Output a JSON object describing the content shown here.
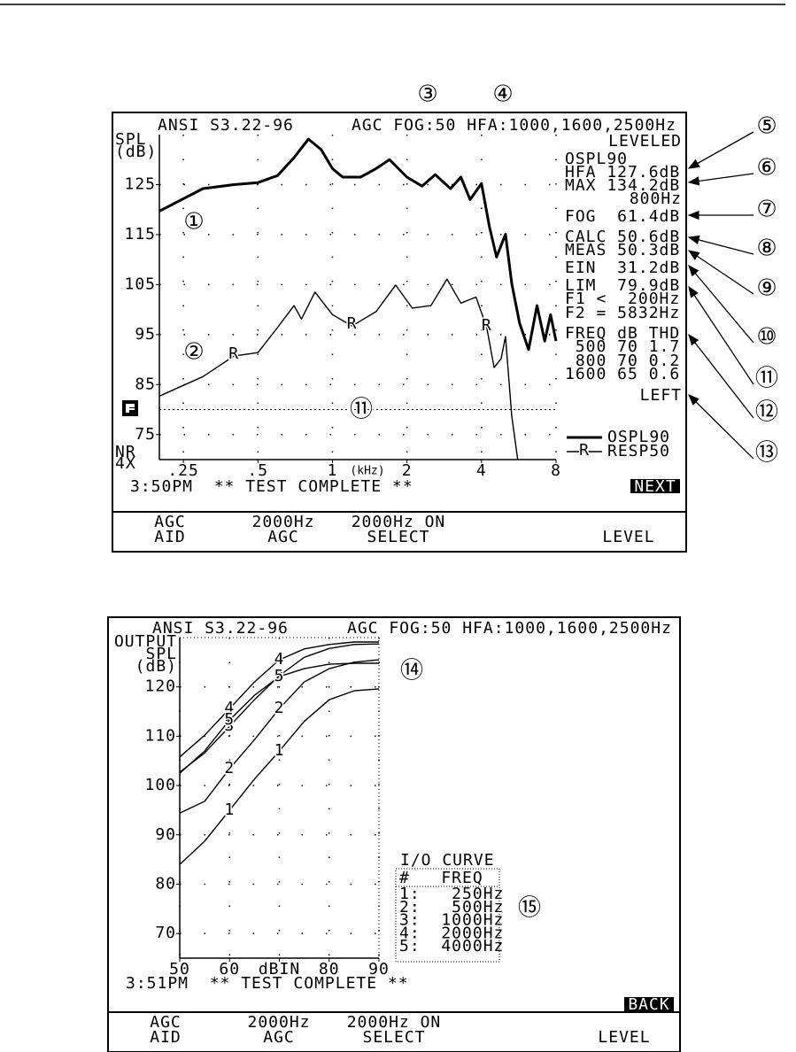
{
  "callouts": [
    "①",
    "②",
    "③",
    "④",
    "⑤",
    "⑥",
    "⑦",
    "⑧",
    "⑨",
    "⑩",
    "⑪",
    "⑪",
    "⑫",
    "⑬",
    "⑭",
    "⑮"
  ],
  "screens": [
    {
      "header_left": "ANSI S3.22-96",
      "header_right": "AGC FOG:50 HFA:1000,1600,2500Hz",
      "status": "3:50PM  ** TEST COMPLETE **",
      "button": "NEXT",
      "corner_labels": [
        "NR",
        "4X"
      ],
      "panel": [
        "LEVELED",
        "OSPL90",
        "HFA 127.6dB",
        "MAX 134.2dB",
        "800Hz",
        "FOG  61.4dB",
        "CALC 50.6dB",
        "MEAS 50.3dB",
        "EIN  31.2dB",
        "LIM  79.9dB",
        "F1 <  200Hz",
        "F2 = 5832Hz",
        "FREQ dB THD",
        " 500 70 1.7",
        " 800 70 0.2",
        "1600 65 0.6",
        "LEFT"
      ],
      "softkeys": [
        [
          "AGC",
          "AID"
        ],
        [
          "2000Hz",
          "AGC"
        ],
        [
          "2000Hz ON",
          "SELECT"
        ],
        [
          "LEVEL"
        ]
      ]
    },
    {
      "header_left": "ANSI S3.22-96",
      "header_right": "AGC FOG:50 HFA:1000,1600,2500Hz",
      "status": "3:51PM  ** TEST COMPLETE **",
      "button": "BACK",
      "legend_title": "I/O CURVE",
      "legend_header": "#   FREQ",
      "softkeys": [
        [
          "AGC",
          "AID"
        ],
        [
          "2000Hz",
          "AGC"
        ],
        [
          "2000Hz ON",
          "SELECT"
        ],
        [
          "LEVEL"
        ]
      ]
    }
  ],
  "chart_data": [
    {
      "type": "line",
      "ylabel": [
        "SPL",
        "(dB)"
      ],
      "xlabel": "(kHz)",
      "log_x": true,
      "grid": true,
      "xlim": [
        0.2,
        8
      ],
      "ylim": [
        70,
        135
      ],
      "xticks": [
        {
          "value": 0.25,
          "label": ".25"
        },
        {
          "value": 0.5,
          "label": ".5"
        },
        1,
        2,
        4,
        8
      ],
      "yticks": [
        75,
        85,
        95,
        105,
        115,
        125
      ],
      "reference_line": 80,
      "series": [
        {
          "name": "OSPL90",
          "color": "#000000",
          "x": [
            0.2,
            0.3,
            0.4,
            0.5,
            0.6,
            0.7,
            0.8,
            0.9,
            1.0,
            1.1,
            1.3,
            1.5,
            1.7,
            2.0,
            2.3,
            2.6,
            3.0,
            3.3,
            3.6,
            4.0,
            4.3,
            4.6,
            5.0,
            5.3,
            5.7,
            6.2,
            6.7,
            7.2,
            7.6,
            8.0
          ],
          "values": [
            119.7,
            124.2,
            125,
            125.4,
            126.8,
            130.4,
            134.1,
            132,
            128.2,
            126.5,
            126.5,
            128.2,
            130,
            126.5,
            124.7,
            127,
            124.2,
            126.5,
            122,
            125.2,
            116.7,
            110.5,
            115.1,
            105.2,
            97.3,
            92,
            100.8,
            93.7,
            99,
            93.7
          ]
        },
        {
          "name": "RESP50",
          "color": "#000000",
          "marker": "R",
          "x": [
            0.2,
            0.3,
            0.4,
            0.5,
            0.6,
            0.7,
            0.75,
            0.85,
            1.0,
            1.2,
            1.5,
            1.8,
            2.1,
            2.5,
            2.9,
            3.3,
            3.8,
            4.2,
            4.5,
            4.8,
            5.0,
            5.3,
            5.6
          ],
          "values": [
            82.7,
            86.6,
            90.7,
            91.4,
            96.4,
            100.8,
            98.1,
            103.5,
            99,
            96.7,
            99.6,
            104.9,
            100.3,
            100.8,
            106.1,
            101.3,
            102.5,
            96.4,
            88.4,
            90.2,
            94.6,
            78.7,
            70
          ]
        }
      ]
    },
    {
      "type": "line",
      "ylabel": [
        "OUTPUT",
        "SPL",
        "(dB)"
      ],
      "grid": true,
      "xlim": [
        50,
        90
      ],
      "ylim": [
        65,
        130
      ],
      "xticks": [
        50,
        60,
        {
          "value": 70,
          "label": "dBIN"
        },
        80,
        90
      ],
      "yticks": [
        70,
        80,
        90,
        100,
        110,
        120
      ],
      "series": [
        {
          "name": "1",
          "legend": "1:   250Hz",
          "color": "#000000",
          "x": [
            50,
            55,
            60,
            65,
            70,
            75,
            80,
            85,
            90
          ],
          "values": [
            84,
            88.7,
            95,
            101.3,
            107,
            113,
            117.4,
            119.2,
            119.6
          ]
        },
        {
          "name": "2",
          "legend": "2:   500Hz",
          "color": "#000000",
          "x": [
            50,
            55,
            60,
            65,
            70,
            75,
            80,
            85,
            90
          ],
          "values": [
            94.4,
            96.8,
            103.4,
            109.3,
            115.6,
            121,
            123.7,
            125,
            125.5
          ]
        },
        {
          "name": "3",
          "legend": "3:  1000Hz",
          "color": "#000000",
          "x": [
            50,
            55,
            60,
            65,
            70,
            75,
            80,
            85,
            90
          ],
          "values": [
            102.7,
            106.6,
            112,
            117.4,
            122.3,
            126,
            127.8,
            128.6,
            128.7
          ]
        },
        {
          "name": "4",
          "legend": "4:  2000Hz",
          "color": "#000000",
          "x": [
            50,
            55,
            60,
            65,
            70,
            75,
            80,
            85,
            90
          ],
          "values": [
            105.8,
            110.2,
            115.6,
            121,
            125.5,
            127.7,
            128.6,
            129.1,
            129.1
          ]
        },
        {
          "name": "5",
          "legend": "5:  4000Hz",
          "color": "#000000",
          "x": [
            50,
            55,
            60,
            65,
            70,
            75,
            80,
            85,
            90
          ],
          "values": [
            102.5,
            107,
            113.3,
            118.3,
            122.1,
            123.7,
            124.6,
            124.8,
            124.8
          ]
        }
      ]
    }
  ]
}
